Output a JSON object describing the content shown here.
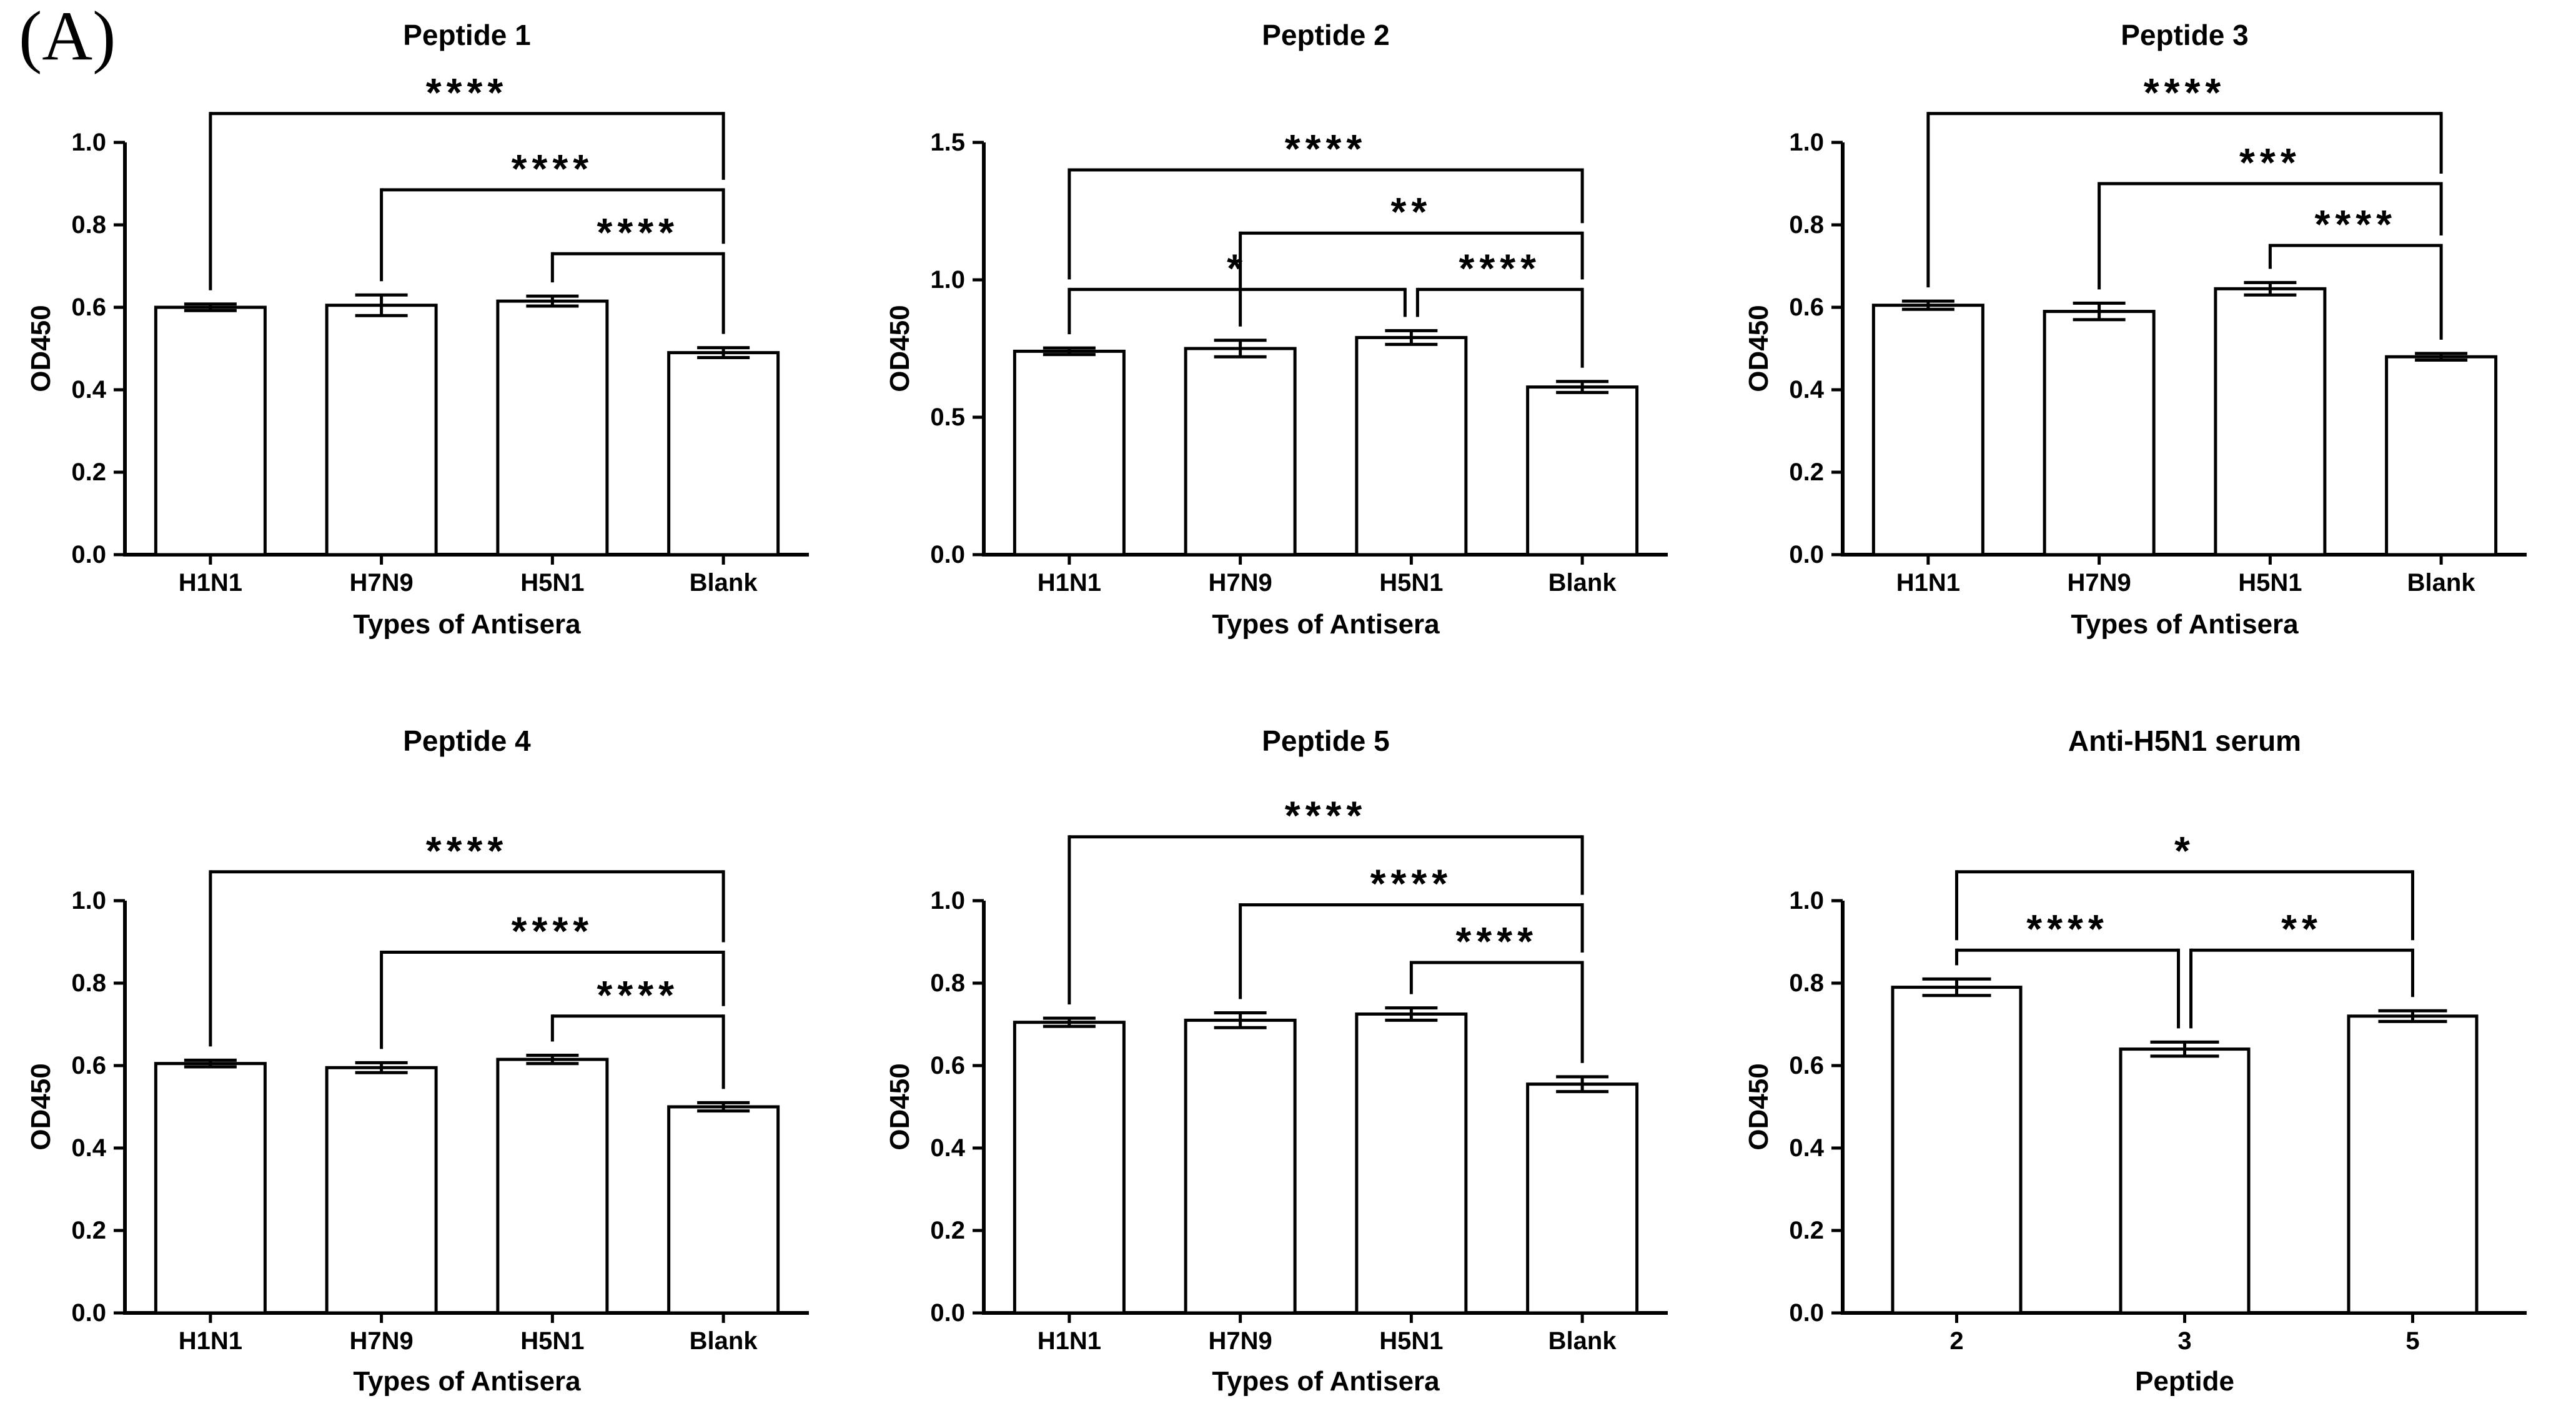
{
  "figure_label": "(A)",
  "colors": {
    "foreground": "#000000",
    "background": "#ffffff"
  },
  "chart_data": [
    {
      "type": "bar",
      "title": "Peptide 1",
      "xlabel": "Types of Antisera",
      "ylabel": "OD450",
      "categories": [
        "H1N1",
        "H7N9",
        "H5N1",
        "Blank"
      ],
      "values": [
        0.6,
        0.605,
        0.615,
        0.49
      ],
      "errors": [
        0.008,
        0.025,
        0.012,
        0.012
      ],
      "ylim": [
        0,
        1.0
      ],
      "yticks": [
        {
          "value": 0.0,
          "label": "0.0"
        },
        {
          "value": 0.2,
          "label": "0.2"
        },
        {
          "value": 0.4,
          "label": "0.4"
        },
        {
          "value": 0.6,
          "label": "0.6"
        },
        {
          "value": 0.8,
          "label": "0.8"
        },
        {
          "value": 1.0,
          "label": "1.0"
        }
      ],
      "grid": false,
      "legend": null,
      "significance": [
        {
          "from": "H1N1",
          "to": "Blank",
          "label": "****",
          "level": 1.07
        },
        {
          "from": "H7N9",
          "to": "Blank",
          "label": "****",
          "level": 0.885
        },
        {
          "from": "H5N1",
          "to": "Blank",
          "label": "****",
          "level": 0.73
        }
      ]
    },
    {
      "type": "bar",
      "title": "Peptide 2",
      "xlabel": "Types of Antisera",
      "ylabel": "OD450",
      "categories": [
        "H1N1",
        "H7N9",
        "H5N1",
        "Blank"
      ],
      "values": [
        0.74,
        0.75,
        0.79,
        0.61
      ],
      "errors": [
        0.012,
        0.03,
        0.025,
        0.02
      ],
      "ylim": [
        0,
        1.5
      ],
      "yticks": [
        {
          "value": 0.0,
          "label": "0.0"
        },
        {
          "value": 0.5,
          "label": "0.5"
        },
        {
          "value": 1.0,
          "label": "1.0"
        },
        {
          "value": 1.5,
          "label": "1.5"
        }
      ],
      "grid": false,
      "legend": null,
      "significance": [
        {
          "from": "H1N1",
          "to": "Blank",
          "label": "****",
          "level": 1.4
        },
        {
          "from": "H7N9",
          "to": "Blank",
          "label": "**",
          "level": 1.17
        },
        {
          "from": "H1N1",
          "to": "H5N1",
          "label": "*",
          "level": 0.965
        },
        {
          "from": "H5N1",
          "to": "Blank",
          "label": "****",
          "level": 0.965
        }
      ]
    },
    {
      "type": "bar",
      "title": "Peptide 3",
      "xlabel": "Types of Antisera",
      "ylabel": "OD450",
      "categories": [
        "H1N1",
        "H7N9",
        "H5N1",
        "Blank"
      ],
      "values": [
        0.605,
        0.59,
        0.645,
        0.48
      ],
      "errors": [
        0.01,
        0.02,
        0.015,
        0.008
      ],
      "ylim": [
        0,
        1.0
      ],
      "yticks": [
        {
          "value": 0.0,
          "label": "0.0"
        },
        {
          "value": 0.2,
          "label": "0.2"
        },
        {
          "value": 0.4,
          "label": "0.4"
        },
        {
          "value": 0.6,
          "label": "0.6"
        },
        {
          "value": 0.8,
          "label": "0.8"
        },
        {
          "value": 1.0,
          "label": "1.0"
        }
      ],
      "grid": false,
      "legend": null,
      "significance": [
        {
          "from": "H1N1",
          "to": "Blank",
          "label": "****",
          "level": 1.07
        },
        {
          "from": "H7N9",
          "to": "Blank",
          "label": "***",
          "level": 0.9
        },
        {
          "from": "H5N1",
          "to": "Blank",
          "label": "****",
          "level": 0.75
        }
      ]
    },
    {
      "type": "bar",
      "title": "Peptide 4",
      "xlabel": "Types of Antisera",
      "ylabel": "OD450",
      "categories": [
        "H1N1",
        "H7N9",
        "H5N1",
        "Blank"
      ],
      "values": [
        0.605,
        0.595,
        0.615,
        0.5
      ],
      "errors": [
        0.008,
        0.012,
        0.01,
        0.01
      ],
      "ylim": [
        0,
        1.0
      ],
      "yticks": [
        {
          "value": 0.0,
          "label": "0.0"
        },
        {
          "value": 0.2,
          "label": "0.2"
        },
        {
          "value": 0.4,
          "label": "0.4"
        },
        {
          "value": 0.6,
          "label": "0.6"
        },
        {
          "value": 0.8,
          "label": "0.8"
        },
        {
          "value": 1.0,
          "label": "1.0"
        }
      ],
      "grid": false,
      "legend": null,
      "significance": [
        {
          "from": "H1N1",
          "to": "Blank",
          "label": "****",
          "level": 1.07
        },
        {
          "from": "H7N9",
          "to": "Blank",
          "label": "****",
          "level": 0.875
        },
        {
          "from": "H5N1",
          "to": "Blank",
          "label": "****",
          "level": 0.72
        }
      ]
    },
    {
      "type": "bar",
      "title": "Peptide 5",
      "xlabel": "Types of Antisera",
      "ylabel": "OD450",
      "categories": [
        "H1N1",
        "H7N9",
        "H5N1",
        "Blank"
      ],
      "values": [
        0.705,
        0.71,
        0.725,
        0.555
      ],
      "errors": [
        0.01,
        0.018,
        0.015,
        0.018
      ],
      "ylim": [
        0,
        1.0
      ],
      "yticks": [
        {
          "value": 0.0,
          "label": "0.0"
        },
        {
          "value": 0.2,
          "label": "0.2"
        },
        {
          "value": 0.4,
          "label": "0.4"
        },
        {
          "value": 0.6,
          "label": "0.6"
        },
        {
          "value": 0.8,
          "label": "0.8"
        },
        {
          "value": 1.0,
          "label": "1.0"
        }
      ],
      "grid": false,
      "legend": null,
      "significance": [
        {
          "from": "H1N1",
          "to": "Blank",
          "label": "****",
          "level": 1.155
        },
        {
          "from": "H7N9",
          "to": "Blank",
          "label": "****",
          "level": 0.99
        },
        {
          "from": "H5N1",
          "to": "Blank",
          "label": "****",
          "level": 0.85
        }
      ]
    },
    {
      "type": "bar",
      "title": "Anti-H5N1 serum",
      "xlabel": "Peptide",
      "ylabel": "OD450",
      "categories": [
        "2",
        "3",
        "5"
      ],
      "values": [
        0.79,
        0.64,
        0.72
      ],
      "errors": [
        0.02,
        0.017,
        0.013
      ],
      "ylim": [
        0,
        1.0
      ],
      "yticks": [
        {
          "value": 0.0,
          "label": "0.0"
        },
        {
          "value": 0.2,
          "label": "0.2"
        },
        {
          "value": 0.4,
          "label": "0.4"
        },
        {
          "value": 0.6,
          "label": "0.6"
        },
        {
          "value": 0.8,
          "label": "0.8"
        },
        {
          "value": 1.0,
          "label": "1.0"
        }
      ],
      "grid": false,
      "legend": null,
      "significance": [
        {
          "from": "2",
          "to": "5",
          "label": "*",
          "level": 1.07
        },
        {
          "from": "2",
          "to": "3",
          "label": "****",
          "level": 0.88
        },
        {
          "from": "3",
          "to": "5",
          "label": "**",
          "level": 0.88
        }
      ]
    }
  ]
}
